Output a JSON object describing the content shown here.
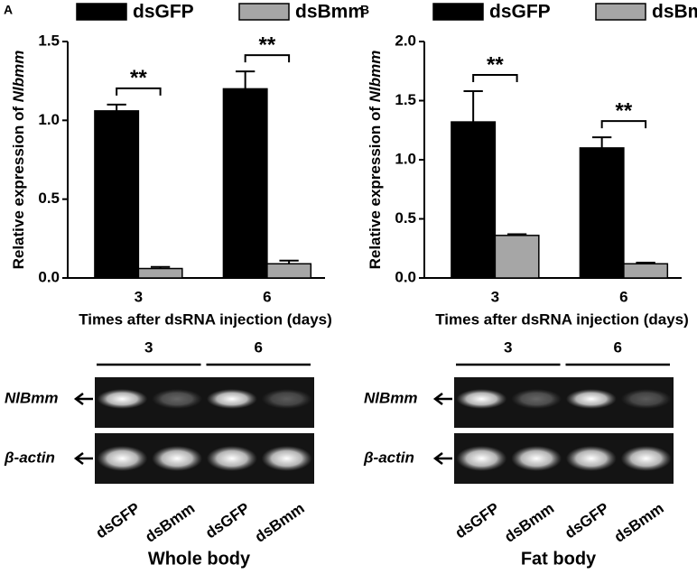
{
  "chart_data": [
    {
      "type": "bar",
      "panel": "A",
      "ylabel": [
        "Relative expression of ",
        "Nlbmm"
      ],
      "xlabel": "Times after dsRNA injection (days)",
      "categories": [
        "3",
        "6"
      ],
      "series": [
        {
          "name": "dsGFP",
          "color": "#000000",
          "values": [
            1.06,
            1.2
          ],
          "errors": [
            0.04,
            0.11
          ]
        },
        {
          "name": "dsBmm",
          "color": "#a6a6a6",
          "values": [
            0.06,
            0.09
          ],
          "errors": [
            0.01,
            0.02
          ]
        }
      ],
      "annotations": [
        "**",
        "**"
      ],
      "ylim": [
        0,
        1.5
      ],
      "yticks": [
        {
          "value": 0,
          "label": "0.0"
        },
        0.5,
        {
          "value": 1,
          "label": "1.0"
        },
        1.5
      ],
      "legend": "top"
    },
    {
      "type": "bar",
      "panel": "B",
      "ylabel": [
        "Relative expression of ",
        "Nlbmm"
      ],
      "xlabel": "Times after dsRNA injection (days)",
      "categories": [
        "3",
        "6"
      ],
      "series": [
        {
          "name": "dsGFP",
          "color": "#000000",
          "values": [
            1.32,
            1.1
          ],
          "errors": [
            0.26,
            0.09
          ]
        },
        {
          "name": "dsBmm",
          "color": "#a6a6a6",
          "values": [
            0.36,
            0.12
          ],
          "errors": [
            0.01,
            0.01
          ]
        }
      ],
      "annotations": [
        "**",
        "**"
      ],
      "ylim": [
        0,
        2
      ],
      "yticks": [
        {
          "value": 0,
          "label": "0.0"
        },
        0.5,
        {
          "value": 1,
          "label": "1.0"
        },
        1.5,
        {
          "value": 2,
          "label": "2.0"
        }
      ],
      "legend": "top"
    }
  ],
  "gels": [
    {
      "groups": [
        "3",
        "6"
      ],
      "rows": [
        "NlBmm",
        "β-actin"
      ],
      "lanes": [
        "dsGFP",
        "dsBmm",
        "dsGFP",
        "dsBmm"
      ],
      "caption": "Whole body"
    },
    {
      "groups": [
        "3",
        "6"
      ],
      "rows": [
        "NlBmm",
        "β-actin"
      ],
      "lanes": [
        "dsGFP",
        "dsBmm",
        "dsGFP",
        "dsBmm"
      ],
      "caption": "Fat body"
    }
  ]
}
